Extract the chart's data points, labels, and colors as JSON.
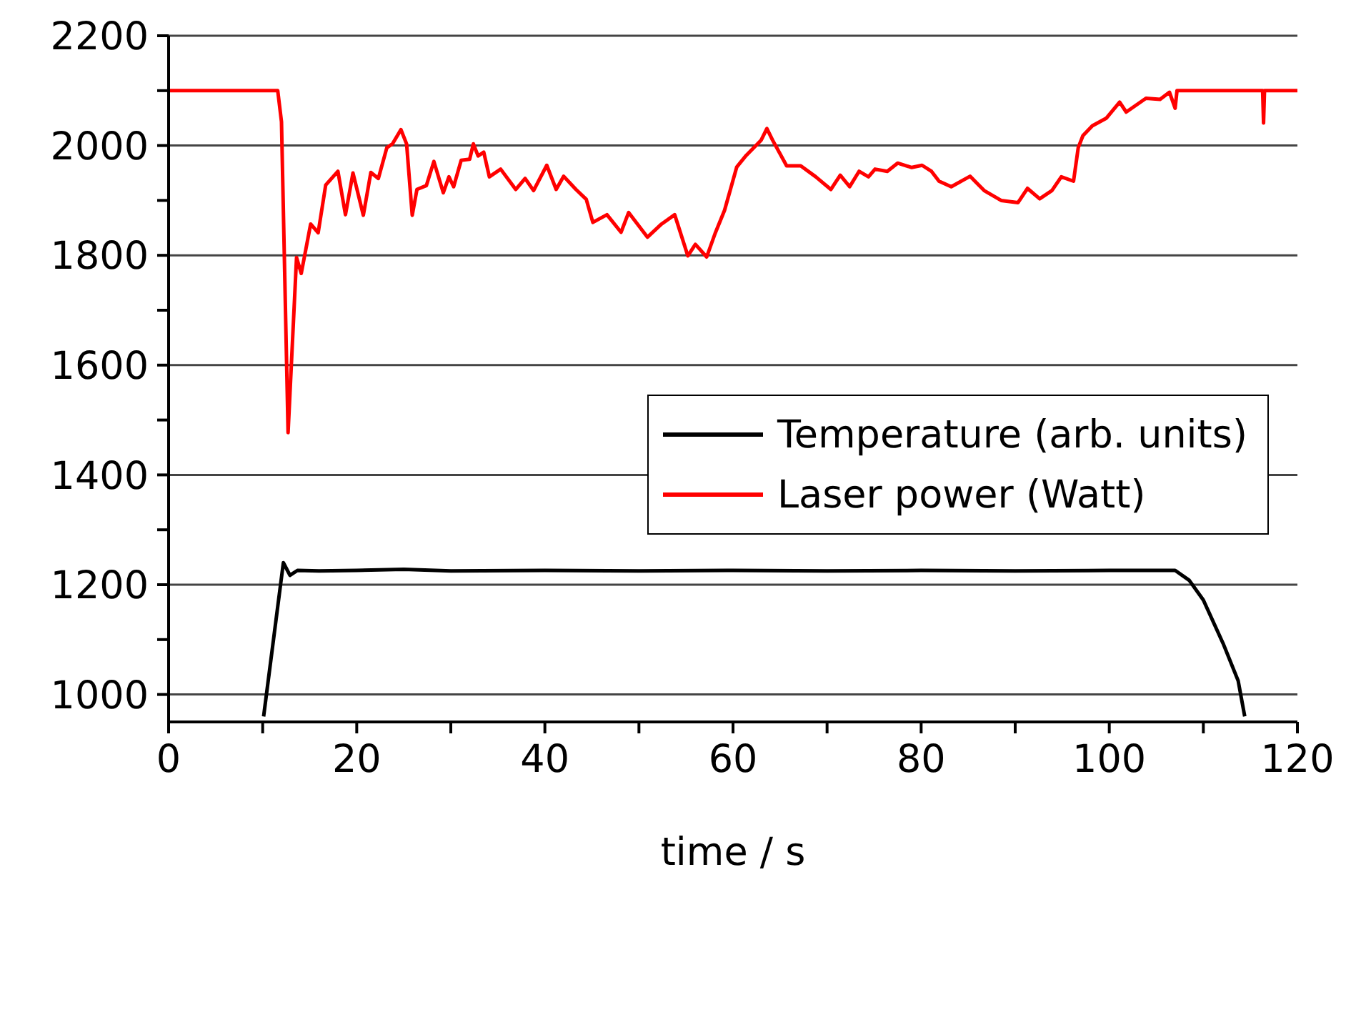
{
  "chart_data": {
    "type": "line",
    "xlabel": "time / s",
    "xlim": [
      0,
      120
    ],
    "xticks": [
      0,
      {
        "value": 10,
        "label": null
      },
      20,
      {
        "value": 30,
        "label": null
      },
      40,
      {
        "value": 50,
        "label": null
      },
      60,
      {
        "value": 70,
        "label": null
      },
      80,
      {
        "value": 90,
        "label": null
      },
      100,
      {
        "value": 110,
        "label": null
      },
      120
    ],
    "ylim": [
      950,
      2200
    ],
    "yticks": [
      1000,
      {
        "value": 1100,
        "label": null
      },
      1200,
      {
        "value": 1300,
        "label": null
      },
      1400,
      {
        "value": 1500,
        "label": null
      },
      1600,
      {
        "value": 1700,
        "label": null
      },
      1800,
      {
        "value": 1900,
        "label": null
      },
      2000,
      {
        "value": 2100,
        "label": null
      },
      2200
    ],
    "grid": "y",
    "legend": "right",
    "marker": "none",
    "line_style": "solid",
    "series": [
      {
        "name": "Temperature (arb. units)",
        "color": "#000000",
        "x": [
          10.1,
          12.2,
          12.9,
          13.7,
          16,
          20,
          25,
          30,
          40,
          50,
          60,
          70,
          80,
          90,
          100,
          107.0,
          108.5,
          110.0,
          112.1,
          113.7,
          114.4
        ],
        "values": [
          960,
          1240,
          1217,
          1226,
          1225,
          1226,
          1228,
          1225,
          1226,
          1225,
          1226,
          1225,
          1226,
          1225,
          1226,
          1226,
          1208,
          1172,
          1093,
          1025,
          960
        ]
      },
      {
        "name": "Laser power (Watt)",
        "color": "#ff0000",
        "x": [
          0,
          11.6,
          12.0,
          12.7,
          13.6,
          14.1,
          15.1,
          15.9,
          16.7,
          18.0,
          18.8,
          19.6,
          20.7,
          21.5,
          22.3,
          23.2,
          23.8,
          24.7,
          25.3,
          25.9,
          26.4,
          27.4,
          28.2,
          29.2,
          29.8,
          30.3,
          31.1,
          32.0,
          32.4,
          32.9,
          33.5,
          34.1,
          35.3,
          36.9,
          37.9,
          38.8,
          40.2,
          41.2,
          42.0,
          43.3,
          44.4,
          45.1,
          46.6,
          48.1,
          48.9,
          50.9,
          52.4,
          53.8,
          55.2,
          56.0,
          57.2,
          58.1,
          59.1,
          60.4,
          61.4,
          62.2,
          63.0,
          63.6,
          64.2,
          65.7,
          67.2,
          68.8,
          70.4,
          71.4,
          72.4,
          73.4,
          74.4,
          75.1,
          76.4,
          77.5,
          79.0,
          80.1,
          81.1,
          81.9,
          83.2,
          85.2,
          86.7,
          88.5,
          90.3,
          91.3,
          92.6,
          93.9,
          94.9,
          96.2,
          96.7,
          97.2,
          98.2,
          99.7,
          101.1,
          101.8,
          103.9,
          105.4,
          106.4,
          107.0,
          107.2,
          116.3,
          116.4,
          116.5,
          120
        ],
        "values": [
          2100,
          2100,
          2043,
          1477,
          1796,
          1767,
          1857,
          1841,
          1928,
          1953,
          1874,
          1950,
          1873,
          1951,
          1940,
          1996,
          2003,
          2029,
          2003,
          1873,
          1920,
          1927,
          1971,
          1914,
          1943,
          1925,
          1973,
          1975,
          2003,
          1981,
          1988,
          1943,
          1957,
          1920,
          1940,
          1918,
          1964,
          1920,
          1944,
          1920,
          1902,
          1860,
          1874,
          1842,
          1878,
          1833,
          1857,
          1874,
          1799,
          1820,
          1797,
          1840,
          1882,
          1961,
          1982,
          1996,
          2010,
          2031,
          2010,
          1963,
          1963,
          1943,
          1920,
          1946,
          1925,
          1953,
          1943,
          1957,
          1953,
          1968,
          1960,
          1964,
          1953,
          1935,
          1925,
          1944,
          1918,
          1900,
          1896,
          1922,
          1903,
          1918,
          1943,
          1935,
          1996,
          2018,
          2036,
          2050,
          2079,
          2061,
          2086,
          2084,
          2097,
          2068,
          2100,
          2100,
          2041,
          2100,
          2100
        ]
      }
    ]
  }
}
